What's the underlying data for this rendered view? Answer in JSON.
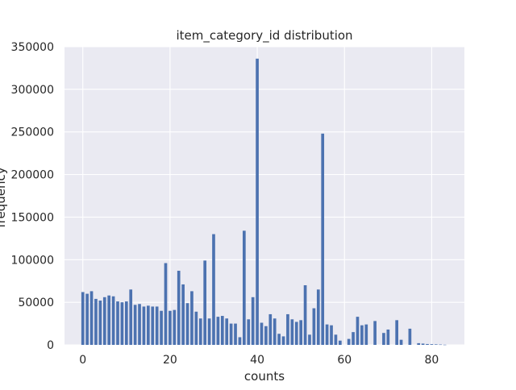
{
  "chart_data": {
    "type": "bar",
    "title": "item_category_id distribution",
    "xlabel": "counts",
    "ylabel": "frequency",
    "xlim": [
      -4.2,
      87.5
    ],
    "ylim": [
      0,
      350000
    ],
    "x_ticks": [
      0,
      20,
      40,
      60,
      80
    ],
    "y_ticks": [
      0,
      50000,
      100000,
      150000,
      200000,
      250000,
      300000,
      350000
    ],
    "grid": true,
    "background_color": "#eaeaf2",
    "bar_color": "#4c72b0",
    "x": [
      0,
      1,
      2,
      3,
      4,
      5,
      6,
      7,
      8,
      9,
      10,
      11,
      12,
      13,
      14,
      15,
      16,
      17,
      18,
      19,
      20,
      21,
      22,
      23,
      24,
      25,
      26,
      27,
      28,
      29,
      30,
      31,
      32,
      33,
      34,
      35,
      36,
      37,
      38,
      39,
      40,
      41,
      42,
      43,
      44,
      45,
      46,
      47,
      48,
      49,
      50,
      51,
      52,
      53,
      54,
      55,
      56,
      57,
      58,
      59,
      60,
      61,
      62,
      63,
      64,
      65,
      66,
      67,
      68,
      69,
      70,
      71,
      72,
      73,
      74,
      75,
      76,
      77,
      78,
      79,
      80,
      81,
      82,
      83
    ],
    "values": [
      62000,
      60000,
      63000,
      54000,
      52000,
      56000,
      58000,
      57000,
      51000,
      50000,
      51000,
      65000,
      47000,
      48000,
      45000,
      46000,
      45000,
      45000,
      40000,
      96000,
      40000,
      41000,
      87000,
      71000,
      49000,
      63000,
      39000,
      31000,
      99000,
      31000,
      130000,
      33000,
      34000,
      31000,
      25000,
      25000,
      9000,
      134000,
      30000,
      56000,
      336000,
      26000,
      22000,
      36000,
      31000,
      13000,
      10000,
      36000,
      30000,
      27000,
      29000,
      70000,
      12000,
      43000,
      65000,
      248000,
      24000,
      23000,
      12000,
      5000,
      0,
      7000,
      15000,
      33000,
      23000,
      24000,
      0,
      28000,
      0,
      14000,
      18000,
      0,
      29000,
      6000,
      0,
      19000,
      0,
      2000,
      1500,
      1000,
      800,
      600,
      400,
      200
    ]
  }
}
